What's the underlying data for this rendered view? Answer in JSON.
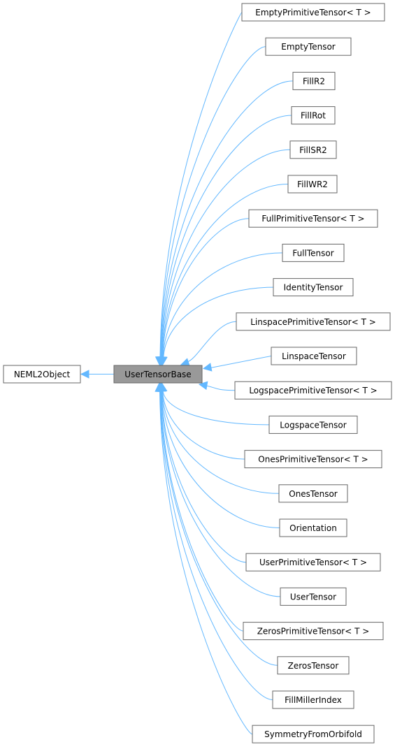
{
  "diagram": {
    "type": "class-inheritance-graph",
    "base_class": "UserTensorBase",
    "parent_class": "NEML2Object",
    "colors": {
      "edge": "#63b8ff",
      "highlight_fill": "#999999",
      "border": "#666666"
    },
    "derived_classes": [
      "EmptyPrimitiveTensor< T >",
      "EmptyTensor",
      "FillR2",
      "FillRot",
      "FillSR2",
      "FillWR2",
      "FullPrimitiveTensor< T >",
      "FullTensor",
      "IdentityTensor",
      "LinspacePrimitiveTensor< T >",
      "LinspaceTensor",
      "LogspacePrimitiveTensor< T >",
      "LogspaceTensor",
      "OnesPrimitiveTensor< T >",
      "OnesTensor",
      "Orientation",
      "UserPrimitiveTensor< T >",
      "UserTensor",
      "ZerosPrimitiveTensor< T >",
      "ZerosTensor",
      "FillMillerIndex",
      "SymmetryFromOrbifold"
    ]
  }
}
